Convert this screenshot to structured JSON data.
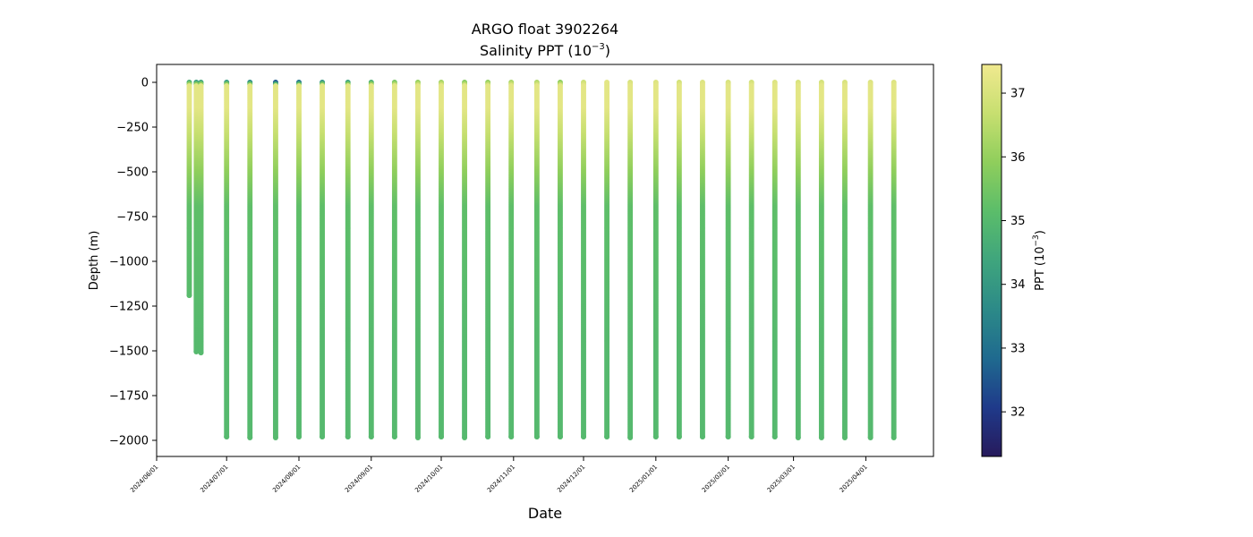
{
  "chart_data": {
    "type": "scatter",
    "title": "ARGO float 3902264",
    "subtitle_prefix": "Salinity PPT (10",
    "subtitle_exp": "−3",
    "subtitle_suffix": ")",
    "xlabel": "Date",
    "ylabel": "Depth (m)",
    "colorbar_label_prefix": "PPT (10",
    "colorbar_label_exp": "−3",
    "colorbar_label_suffix": ")",
    "xlim": [
      "2024-06-01",
      "2025-04-30"
    ],
    "ylim": [
      -2090,
      100
    ],
    "color_range": [
      31.3,
      37.45
    ],
    "colormap": [
      "#271a5c",
      "#1f3a8a",
      "#1f6a8f",
      "#2c8a88",
      "#3fa57d",
      "#5bbd6a",
      "#8fce5c",
      "#c7df70",
      "#f0e98f"
    ],
    "x_ticks": [
      "2024/06/01",
      "2024/07/01",
      "2024/08/01",
      "2024/09/01",
      "2024/10/01",
      "2024/11/01",
      "2024/12/01",
      "2025/01/01",
      "2025/02/01",
      "2025/03/01",
      "2025/04/01"
    ],
    "y_ticks": [
      0,
      -250,
      -500,
      -750,
      -1000,
      -1250,
      -1500,
      -1750,
      -2000
    ],
    "y_tick_labels": [
      "0",
      "−250",
      "−500",
      "−750",
      "−1000",
      "−1250",
      "−1500",
      "−1750",
      "−2000"
    ],
    "colorbar_ticks": [
      32,
      33,
      34,
      35,
      36,
      37
    ],
    "profiles": [
      {
        "date": "2024-06-15",
        "max_depth": -1190,
        "surface": 34.8
      },
      {
        "date": "2024-06-18",
        "max_depth": -1505,
        "surface": 34.3
      },
      {
        "date": "2024-06-20",
        "max_depth": -1510,
        "surface": 34.5
      },
      {
        "date": "2024-07-01",
        "max_depth": -1980,
        "surface": 34.2
      },
      {
        "date": "2024-07-11",
        "max_depth": -1985,
        "surface": 33.8
      },
      {
        "date": "2024-07-22",
        "max_depth": -1985,
        "surface": 32.6
      },
      {
        "date": "2024-08-01",
        "max_depth": -1980,
        "surface": 33.2
      },
      {
        "date": "2024-08-11",
        "max_depth": -1980,
        "surface": 34.0
      },
      {
        "date": "2024-08-22",
        "max_depth": -1980,
        "surface": 34.4
      },
      {
        "date": "2024-09-01",
        "max_depth": -1980,
        "surface": 34.8
      },
      {
        "date": "2024-09-11",
        "max_depth": -1980,
        "surface": 35.6
      },
      {
        "date": "2024-09-21",
        "max_depth": -1985,
        "surface": 36.0
      },
      {
        "date": "2024-10-01",
        "max_depth": -1980,
        "surface": 36.2
      },
      {
        "date": "2024-10-11",
        "max_depth": -1985,
        "surface": 35.8
      },
      {
        "date": "2024-10-21",
        "max_depth": -1980,
        "surface": 36.0
      },
      {
        "date": "2024-10-31",
        "max_depth": -1980,
        "surface": 36.3
      },
      {
        "date": "2024-11-11",
        "max_depth": -1980,
        "surface": 36.4
      },
      {
        "date": "2024-11-21",
        "max_depth": -1980,
        "surface": 35.9
      },
      {
        "date": "2024-12-01",
        "max_depth": -1980,
        "surface": 36.8
      },
      {
        "date": "2024-12-11",
        "max_depth": -1980,
        "surface": 37.2
      },
      {
        "date": "2024-12-21",
        "max_depth": -1985,
        "surface": 37.0
      },
      {
        "date": "2025-01-01",
        "max_depth": -1980,
        "surface": 37.1
      },
      {
        "date": "2025-01-11",
        "max_depth": -1980,
        "surface": 36.9
      },
      {
        "date": "2025-01-21",
        "max_depth": -1980,
        "surface": 37.1
      },
      {
        "date": "2025-02-01",
        "max_depth": -1980,
        "surface": 37.0
      },
      {
        "date": "2025-02-11",
        "max_depth": -1980,
        "surface": 36.9
      },
      {
        "date": "2025-02-21",
        "max_depth": -1980,
        "surface": 37.1
      },
      {
        "date": "2025-03-03",
        "max_depth": -1985,
        "surface": 37.0
      },
      {
        "date": "2025-03-13",
        "max_depth": -1985,
        "surface": 36.9
      },
      {
        "date": "2025-03-23",
        "max_depth": -1985,
        "surface": 37.0
      },
      {
        "date": "2025-04-03",
        "max_depth": -1985,
        "surface": 37.1
      },
      {
        "date": "2025-04-13",
        "max_depth": -1985,
        "surface": 37.1
      }
    ],
    "grid": false,
    "legend": "none"
  }
}
